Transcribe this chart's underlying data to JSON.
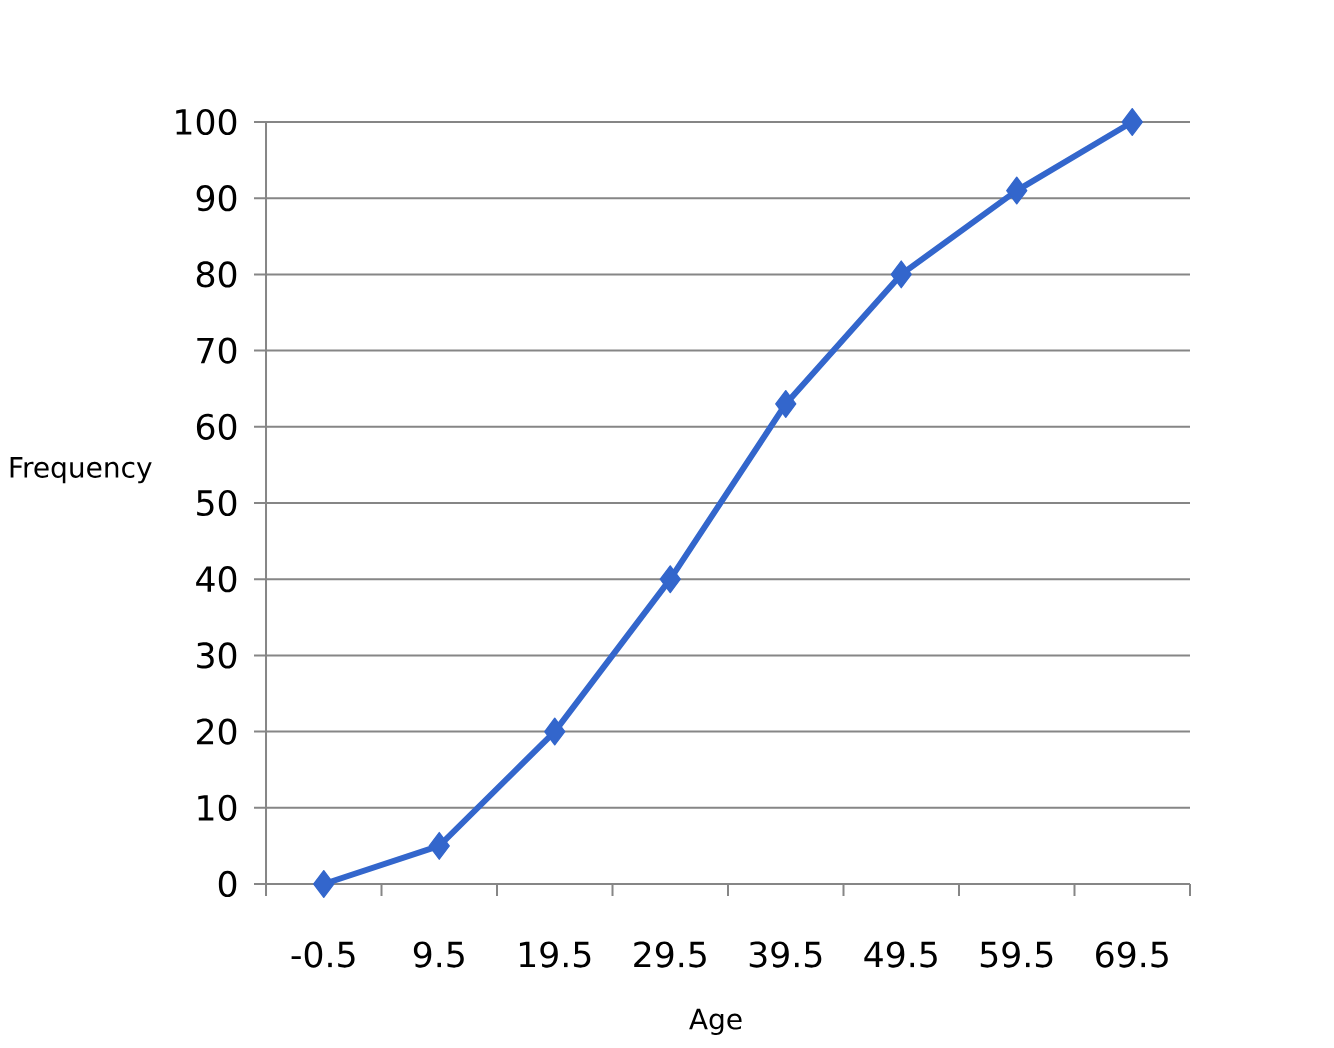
{
  "chart_data": {
    "type": "line",
    "xlabel": "Age",
    "ylabel": "Frequency",
    "categories": [
      "-0.5",
      "9.5",
      "19.5",
      "29.5",
      "39.5",
      "49.5",
      "59.5",
      "69.5"
    ],
    "series": [
      {
        "color": "#3366cc",
        "values": [
          0,
          5,
          20,
          40,
          63,
          80,
          91,
          100
        ]
      }
    ],
    "ylim": [
      0,
      100
    ],
    "yticks": [
      0,
      10,
      20,
      30,
      40,
      50,
      60,
      70,
      80,
      90,
      100
    ],
    "grid": "y",
    "marker": "diamond",
    "line_style": "solid"
  }
}
